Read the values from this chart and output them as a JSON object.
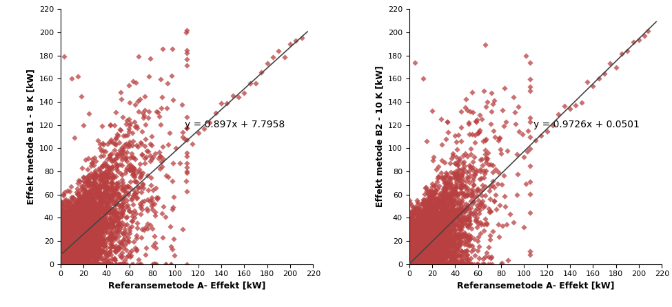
{
  "plot1": {
    "ylabel": "Effekt metode B1 - 8 K [kW]",
    "xlabel": "Referansemetode A- Effekt [kW]",
    "equation": "y = 0.897x + 7.7958",
    "slope": 0.897,
    "intercept": 7.7958,
    "eq_x": 108,
    "eq_y": 118,
    "xlim": [
      0,
      220
    ],
    "ylim": [
      0,
      220
    ],
    "xticks": [
      0,
      20,
      40,
      60,
      80,
      100,
      120,
      140,
      160,
      180,
      200,
      220
    ],
    "yticks": [
      0,
      20,
      40,
      60,
      80,
      100,
      120,
      140,
      160,
      180,
      200,
      220
    ]
  },
  "plot2": {
    "ylabel": "Effekt metode B2 - 10 K [kW]",
    "xlabel": "Referansemetode A- Effekt [kW]",
    "equation": "y = 0.9726x + 0.0501",
    "slope": 0.9726,
    "intercept": 0.0501,
    "eq_x": 108,
    "eq_y": 118,
    "xlim": [
      0,
      220
    ],
    "ylim": [
      0,
      220
    ],
    "xticks": [
      0,
      20,
      40,
      60,
      80,
      100,
      120,
      140,
      160,
      180,
      200,
      220
    ],
    "yticks": [
      0,
      20,
      40,
      60,
      80,
      100,
      120,
      140,
      160,
      180,
      200,
      220
    ]
  },
  "scatter_color": "#b94040",
  "scatter_marker": "D",
  "scatter_size": 18,
  "scatter_alpha": 0.75,
  "line_color": "#444444",
  "line_width": 1.2,
  "bg_color": "#ffffff",
  "label_fontsize": 9,
  "eq_fontsize": 10,
  "tick_fontsize": 8,
  "n_dense": 5000,
  "n_sparse": 80
}
